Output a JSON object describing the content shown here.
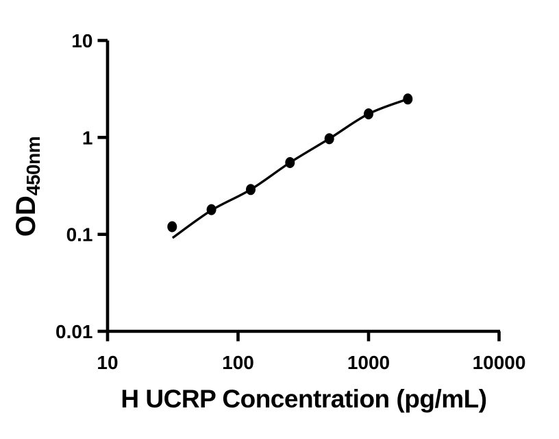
{
  "figure": {
    "background": "#ffffff",
    "ink": "#000000"
  },
  "chart_data": {
    "type": "scatter",
    "title": "",
    "xlabel": "H UCRP Concentration (pg/mL)",
    "ylabel": "OD",
    "ylabel_subscript": "450nm",
    "x_scale": "log10",
    "y_scale": "log10",
    "xlim": [
      10,
      10000
    ],
    "ylim": [
      0.01,
      10
    ],
    "x_ticks": [
      10,
      100,
      1000,
      10000
    ],
    "x_tick_labels": [
      "10",
      "100",
      "1000",
      "10000"
    ],
    "y_ticks": [
      10,
      1,
      0.1,
      0.01
    ],
    "y_tick_labels": [
      "10",
      "1",
      "0.1",
      "0.01"
    ],
    "grid": false,
    "legend": null,
    "series": [
      {
        "name": "standard-points",
        "marker": "filled-ellipse",
        "color": "#000000",
        "x": [
          31.25,
          62.5,
          125,
          250,
          500,
          1000,
          2000
        ],
        "y": [
          0.12,
          0.18,
          0.29,
          0.55,
          0.97,
          1.75,
          2.49
        ]
      }
    ],
    "fit_curve": {
      "name": "fitted-standard-curve",
      "color": "#000000",
      "x": [
        31.5,
        62.5,
        125,
        250,
        500,
        1000,
        2000
      ],
      "y": [
        0.092,
        0.177,
        0.29,
        0.55,
        0.97,
        1.75,
        2.49
      ]
    }
  }
}
